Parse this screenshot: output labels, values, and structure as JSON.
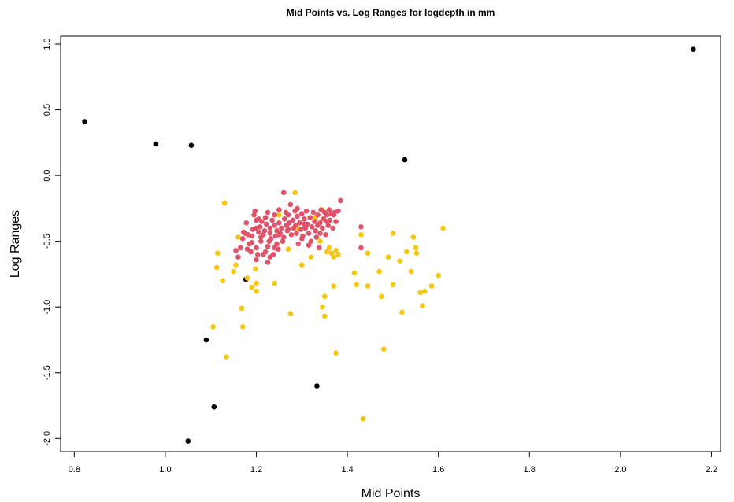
{
  "chart_data": {
    "type": "scatter",
    "title": "Mid Points vs. Log Ranges for logdepth in mm",
    "xlabel": "Mid Points",
    "ylabel": "Log Ranges",
    "xlim": [
      0.77,
      2.22
    ],
    "ylim": [
      -2.1,
      1.06
    ],
    "xticks": [
      0.8,
      1.0,
      1.2,
      1.4,
      1.6,
      1.8,
      2.0,
      2.2
    ],
    "xtick_labels": [
      "0.8",
      "1.0",
      "1.2",
      "1.4",
      "1.6",
      "1.8",
      "2.0",
      "2.2"
    ],
    "yticks": [
      -2.0,
      -1.5,
      -1.0,
      -0.5,
      0.0,
      0.5,
      1.0
    ],
    "ytick_labels": [
      "-2.0",
      "-1.5",
      "-1.0",
      "-0.5",
      "0.0",
      "0.5",
      "1.0"
    ],
    "grid": false,
    "legend": "none",
    "series": [
      {
        "color": "#000000",
        "points": [
          [
            0.823,
            0.41
          ],
          [
            0.979,
            0.24
          ],
          [
            1.057,
            0.23
          ],
          [
            1.526,
            0.12
          ],
          [
            2.16,
            0.96
          ],
          [
            1.09,
            -1.25
          ],
          [
            1.107,
            -1.76
          ],
          [
            1.05,
            -2.02
          ],
          [
            1.333,
            -1.6
          ],
          [
            1.177,
            -0.79
          ]
        ]
      },
      {
        "color": "#F5C710",
        "points": [
          [
            1.13,
            -0.21
          ],
          [
            1.115,
            -0.59
          ],
          [
            1.113,
            -0.7
          ],
          [
            1.126,
            -0.8
          ],
          [
            1.105,
            -1.15
          ],
          [
            1.134,
            -1.38
          ],
          [
            1.168,
            -1.01
          ],
          [
            1.17,
            -1.15
          ],
          [
            1.18,
            -0.78
          ],
          [
            1.19,
            -0.85
          ],
          [
            1.2,
            -0.88
          ],
          [
            1.198,
            -0.71
          ],
          [
            1.2,
            -0.82
          ],
          [
            1.15,
            -0.73
          ],
          [
            1.155,
            -0.68
          ],
          [
            1.16,
            -0.47
          ],
          [
            1.24,
            -0.82
          ],
          [
            1.275,
            -1.05
          ],
          [
            1.285,
            -0.13
          ],
          [
            1.3,
            -0.68
          ],
          [
            1.345,
            -1.0
          ],
          [
            1.35,
            -1.07
          ],
          [
            1.35,
            -0.92
          ],
          [
            1.36,
            -0.55
          ],
          [
            1.365,
            -0.59
          ],
          [
            1.37,
            -0.62
          ],
          [
            1.375,
            -0.57
          ],
          [
            1.38,
            -0.6
          ],
          [
            1.37,
            -0.84
          ],
          [
            1.375,
            -1.35
          ],
          [
            1.34,
            -0.5
          ],
          [
            1.345,
            -0.26
          ],
          [
            1.355,
            -0.58
          ],
          [
            1.32,
            -0.62
          ],
          [
            1.415,
            -0.74
          ],
          [
            1.42,
            -0.83
          ],
          [
            1.43,
            -0.45
          ],
          [
            1.435,
            -1.85
          ],
          [
            1.445,
            -0.59
          ],
          [
            1.445,
            -0.84
          ],
          [
            1.47,
            -0.73
          ],
          [
            1.475,
            -0.92
          ],
          [
            1.48,
            -1.32
          ],
          [
            1.49,
            -0.62
          ],
          [
            1.5,
            -0.44
          ],
          [
            1.5,
            -0.83
          ],
          [
            1.515,
            -0.65
          ],
          [
            1.52,
            -1.04
          ],
          [
            1.53,
            -0.58
          ],
          [
            1.54,
            -0.73
          ],
          [
            1.545,
            -0.47
          ],
          [
            1.55,
            -0.55
          ],
          [
            1.552,
            -0.59
          ],
          [
            1.56,
            -0.89
          ],
          [
            1.565,
            -0.99
          ],
          [
            1.57,
            -0.88
          ],
          [
            1.585,
            -0.84
          ],
          [
            1.6,
            -0.76
          ],
          [
            1.61,
            -0.4
          ],
          [
            1.27,
            -0.56
          ],
          [
            1.29,
            -0.4
          ],
          [
            1.33,
            -0.32
          ],
          [
            1.25,
            -0.3
          ]
        ]
      },
      {
        "color": "#DF536B",
        "points": [
          [
            1.155,
            -0.57
          ],
          [
            1.16,
            -0.62
          ],
          [
            1.165,
            -0.55
          ],
          [
            1.17,
            -0.48
          ],
          [
            1.172,
            -0.43
          ],
          [
            1.178,
            -0.36
          ],
          [
            1.18,
            -0.56
          ],
          [
            1.185,
            -0.52
          ],
          [
            1.188,
            -0.58
          ],
          [
            1.19,
            -0.46
          ],
          [
            1.192,
            -0.41
          ],
          [
            1.195,
            -0.3
          ],
          [
            1.197,
            -0.27
          ],
          [
            1.2,
            -0.34
          ],
          [
            1.2,
            -0.55
          ],
          [
            1.2,
            -0.64
          ],
          [
            1.203,
            -0.6
          ],
          [
            1.205,
            -0.43
          ],
          [
            1.208,
            -0.39
          ],
          [
            1.21,
            -0.47
          ],
          [
            1.21,
            -0.5
          ],
          [
            1.212,
            -0.35
          ],
          [
            1.215,
            -0.45
          ],
          [
            1.218,
            -0.42
          ],
          [
            1.22,
            -0.32
          ],
          [
            1.22,
            -0.58
          ],
          [
            1.222,
            -0.37
          ],
          [
            1.225,
            -0.54
          ],
          [
            1.225,
            -0.66
          ],
          [
            1.228,
            -0.5
          ],
          [
            1.23,
            -0.4
          ],
          [
            1.23,
            -0.44
          ],
          [
            1.232,
            -0.48
          ],
          [
            1.235,
            -0.34
          ],
          [
            1.237,
            -0.6
          ],
          [
            1.24,
            -0.38
          ],
          [
            1.24,
            -0.3
          ],
          [
            1.242,
            -0.46
          ],
          [
            1.245,
            -0.42
          ],
          [
            1.248,
            -0.56
          ],
          [
            1.25,
            -0.26
          ],
          [
            1.25,
            -0.36
          ],
          [
            1.252,
            -0.44
          ],
          [
            1.255,
            -0.4
          ],
          [
            1.258,
            -0.5
          ],
          [
            1.26,
            -0.13
          ],
          [
            1.262,
            -0.33
          ],
          [
            1.265,
            -0.28
          ],
          [
            1.266,
            -0.38
          ],
          [
            1.268,
            -0.42
          ],
          [
            1.27,
            -0.3
          ],
          [
            1.272,
            -0.36
          ],
          [
            1.275,
            -0.22
          ],
          [
            1.277,
            -0.45
          ],
          [
            1.28,
            -0.34
          ],
          [
            1.282,
            -0.4
          ],
          [
            1.285,
            -0.27
          ],
          [
            1.286,
            -0.38
          ],
          [
            1.288,
            -0.44
          ],
          [
            1.29,
            -0.31
          ],
          [
            1.292,
            -0.52
          ],
          [
            1.295,
            -0.36
          ],
          [
            1.298,
            -0.41
          ],
          [
            1.3,
            -0.29
          ],
          [
            1.302,
            -0.46
          ],
          [
            1.305,
            -0.33
          ],
          [
            1.308,
            -0.4
          ],
          [
            1.31,
            -0.27
          ],
          [
            1.312,
            -0.37
          ],
          [
            1.315,
            -0.44
          ],
          [
            1.318,
            -0.32
          ],
          [
            1.32,
            -0.5
          ],
          [
            1.322,
            -0.39
          ],
          [
            1.325,
            -0.28
          ],
          [
            1.328,
            -0.35
          ],
          [
            1.33,
            -0.42
          ],
          [
            1.332,
            -0.47
          ],
          [
            1.335,
            -0.3
          ],
          [
            1.338,
            -0.55
          ],
          [
            1.34,
            -0.36
          ],
          [
            1.342,
            -0.26
          ],
          [
            1.345,
            -0.4
          ],
          [
            1.348,
            -0.33
          ],
          [
            1.35,
            -0.28
          ],
          [
            1.352,
            -0.45
          ],
          [
            1.355,
            -0.3
          ],
          [
            1.358,
            -0.38
          ],
          [
            1.36,
            -0.26
          ],
          [
            1.362,
            -0.34
          ],
          [
            1.365,
            -0.29
          ],
          [
            1.368,
            -0.4
          ],
          [
            1.37,
            -0.3
          ],
          [
            1.372,
            -0.28
          ],
          [
            1.375,
            -0.35
          ],
          [
            1.38,
            -0.27
          ],
          [
            1.385,
            -0.19
          ],
          [
            1.43,
            -0.39
          ],
          [
            1.43,
            -0.55
          ],
          [
            1.182,
            -0.45
          ],
          [
            1.215,
            -0.6
          ],
          [
            1.245,
            -0.52
          ],
          [
            1.26,
            -0.47
          ],
          [
            1.3,
            -0.48
          ],
          [
            1.315,
            -0.53
          ],
          [
            1.335,
            -0.38
          ],
          [
            1.225,
            -0.28
          ],
          [
            1.205,
            -0.33
          ],
          [
            1.19,
            -0.51
          ],
          [
            1.175,
            -0.44
          ],
          [
            1.2,
            -0.4
          ],
          [
            1.29,
            -0.25
          ],
          [
            1.305,
            -0.37
          ],
          [
            1.27,
            -0.41
          ],
          [
            1.25,
            -0.45
          ],
          [
            1.24,
            -0.55
          ],
          [
            1.23,
            -0.62
          ],
          [
            1.34,
            -0.44
          ],
          [
            1.355,
            -0.35
          ]
        ]
      }
    ]
  }
}
